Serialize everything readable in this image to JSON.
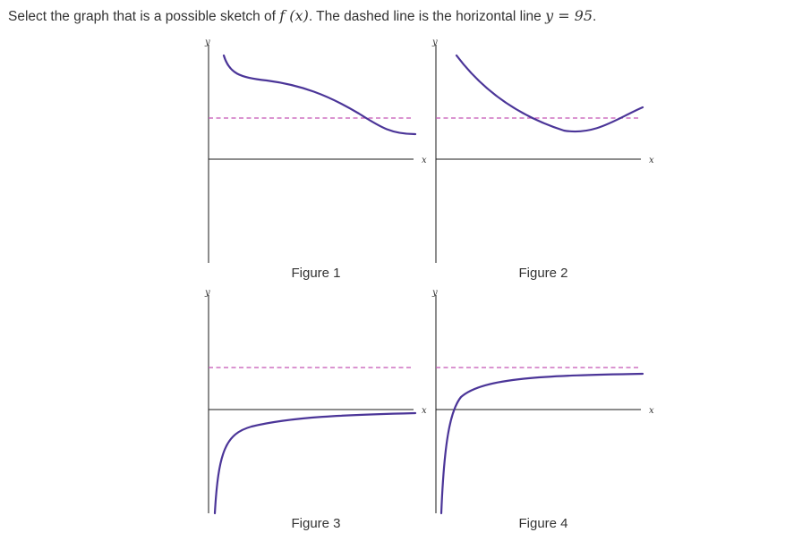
{
  "question": {
    "prefix": "Select the graph that is a possible sketch of ",
    "function": "f (x)",
    "middle": ". The dashed line is the horizontal line ",
    "equation": "y = 95",
    "suffix": "."
  },
  "axis_labels": {
    "x": "x",
    "y": "y"
  },
  "colors": {
    "curve": "#4b3598",
    "asymptote": "#c455b5",
    "axis": "#1a1a1a"
  },
  "figures": [
    {
      "caption": "Figure 1",
      "description": "decreasing from top-left, crossing dashed line, leveling below it"
    },
    {
      "caption": "Figure 2",
      "description": "decreasing below dashed line, minimum, then rising back across it"
    },
    {
      "caption": "Figure 3",
      "description": "rising from bottom, approaching level below dashed line"
    },
    {
      "caption": "Figure 4",
      "description": "rising steeply from bottom, crossing x-axis, approaching dashed line from below"
    }
  ]
}
